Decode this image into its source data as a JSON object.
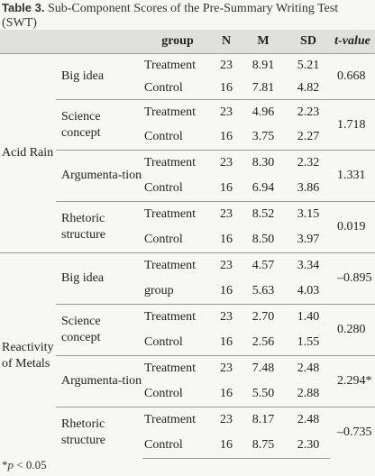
{
  "caption": {
    "label": "Table 3.",
    "text": "Sub-Component Scores of the Pre-Summary Writing Test (SWT)"
  },
  "columns": [
    "",
    "",
    "group",
    "N",
    "M",
    "SD",
    "t-value"
  ],
  "domains": [
    {
      "name": "Acid Rain",
      "subs": [
        {
          "name": "Big idea",
          "t": "0.668",
          "rows": [
            [
              "Treatment",
              "23",
              "8.91",
              "5.21"
            ],
            [
              "Control",
              "16",
              "7.81",
              "4.82"
            ]
          ]
        },
        {
          "name": "Science concept",
          "t": "1.718",
          "rows": [
            [
              "Treatment",
              "23",
              "4.96",
              "2.23"
            ],
            [
              "Control",
              "16",
              "3.75",
              "2.27"
            ]
          ]
        },
        {
          "name": "Argumenta-tion",
          "t": "1.331",
          "rows": [
            [
              "Treatment",
              "23",
              "8.30",
              "2.32"
            ],
            [
              "Control",
              "16",
              "6.94",
              "3.86"
            ]
          ]
        },
        {
          "name": "Rhetoric structure",
          "t": "0.019",
          "rows": [
            [
              "Treatment",
              "23",
              "8.52",
              "3.15"
            ],
            [
              "Control",
              "16",
              "8.50",
              "3.97"
            ]
          ]
        }
      ]
    },
    {
      "name": "Reactivity of Metals",
      "subs": [
        {
          "name": "Big idea",
          "t": "–0.895",
          "rows": [
            [
              "Treatment",
              "23",
              "4.57",
              "3.34"
            ],
            [
              "group",
              "16",
              "5.63",
              "4.03"
            ]
          ]
        },
        {
          "name": "Science concept",
          "t": "0.280",
          "rows": [
            [
              "Treatment",
              "23",
              "2.70",
              "1.40"
            ],
            [
              "Control",
              "16",
              "2.56",
              "1.55"
            ]
          ]
        },
        {
          "name": "Argumenta-tion",
          "t": "2.294*",
          "rows": [
            [
              "Treatment",
              "23",
              "7.48",
              "2.48"
            ],
            [
              "Control",
              "16",
              "5.50",
              "2.88"
            ]
          ]
        },
        {
          "name": "Rhetoric structure",
          "t": "–0.735",
          "rows": [
            [
              "Treatment",
              "23",
              "8.17",
              "2.48"
            ],
            [
              "Control",
              "16",
              "8.75",
              "2.30"
            ]
          ]
        }
      ]
    }
  ],
  "footnote": {
    "star": "*",
    "p": "p",
    "rest": " < 0.05"
  }
}
